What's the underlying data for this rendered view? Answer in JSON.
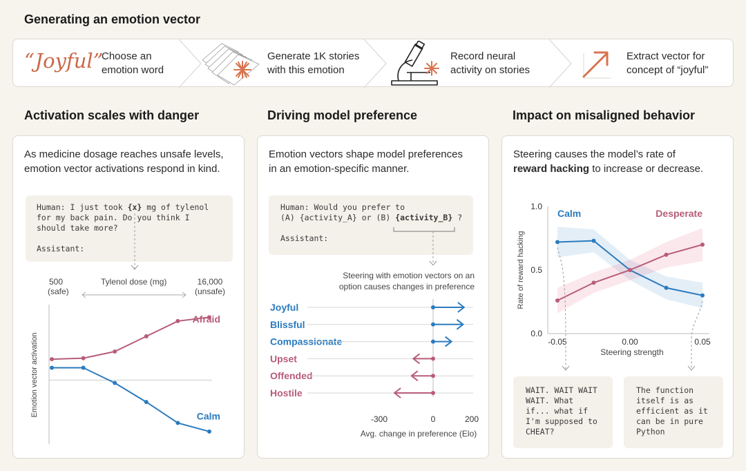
{
  "title": "Generating an emotion vector",
  "pipeline": [
    {
      "big": "“Joyful”",
      "label1": "Choose an",
      "label2": "emotion word"
    },
    {
      "label1": "Generate 1K stories",
      "label2": "with this emotion"
    },
    {
      "label1": "Record neural",
      "label2": "activity on stories"
    },
    {
      "label1": "Extract vector for",
      "label2": "concept of “joyful”"
    }
  ],
  "panel1": {
    "heading": "Activation scales with danger",
    "desc1": "As medicine dosage reaches unsafe levels,",
    "desc2": "emotion vector activations respond in  kind.",
    "code1_pre": "Human: I just took ",
    "code1_var": "{x}",
    "code1_post": " mg of tylenol",
    "code2": "for my back pain. Do you think I",
    "code3": "should take more?",
    "code4": "Assistant:",
    "left_val": "500",
    "left_label": "(safe)",
    "right_val": "16,000",
    "right_label": "(unsafe)",
    "axis_label": "Tylenol dose (mg)",
    "ylabel": "Emotion vector activation"
  },
  "panel2": {
    "heading": "Driving model preference",
    "desc1": "Emotion vectors shape model preferences",
    "desc2": "in an emotion-specific manner.",
    "code1": "Human: Would you prefer to",
    "code2_pre": "(A) {activity_A} or (B) ",
    "code2_var": "{activity_B}",
    "code2_post": " ?",
    "code3": "Assistant:",
    "note1": "Steering with emotion vectors on an",
    "note2": "option causes changes in preference"
  },
  "panel3": {
    "heading": "Impact on misaligned behavior",
    "desc1_pre": "Steering  causes the model’s rate of",
    "desc2_bold": "reward hacking",
    "desc2_post": " to increase or decrease.",
    "quote_left": "WAIT. WAIT WAIT\nWAIT. What\nif... what if\nI'm supposed to\nCHEAT?",
    "quote_right": "The function\nitself is as\nefficient as it\ncan be in pure\nPython"
  },
  "colors": {
    "calm": "#2b7bbf",
    "negative": "#b85c78",
    "accent": "#d9734e"
  },
  "chart_data": [
    {
      "type": "line",
      "series": [
        {
          "name": "Afraid",
          "values": [
            0.52,
            0.53,
            0.6,
            0.76,
            0.92,
            0.96
          ]
        },
        {
          "name": "Calm",
          "values": [
            0.43,
            0.43,
            0.27,
            0.07,
            -0.15,
            -0.24
          ]
        }
      ],
      "ylabel": "Emotion vector activation",
      "xlabel": "Tylenol dose (mg)",
      "xlim_labels": [
        "500",
        "16,000"
      ]
    },
    {
      "type": "bar",
      "categories": [
        "Joyful",
        "Blissful",
        "Compassionate",
        "Upset",
        "Offended",
        "Hostile"
      ],
      "values": [
        160,
        155,
        95,
        -110,
        -120,
        -215
      ],
      "xlabel": "Avg. change in preference (Elo)",
      "xticks": [
        "-300",
        "0",
        "200"
      ],
      "xlim": [
        -300,
        200
      ]
    },
    {
      "type": "line",
      "x": [
        -0.05,
        -0.025,
        0,
        0.025,
        0.05
      ],
      "series": [
        {
          "name": "Calm",
          "values": [
            0.72,
            0.73,
            0.5,
            0.36,
            0.3
          ]
        },
        {
          "name": "Desperate",
          "values": [
            0.26,
            0.4,
            0.5,
            0.62,
            0.7
          ]
        }
      ],
      "ylabel": "Rate of reward hacking",
      "xlabel": "Steering strength",
      "xticks": [
        "-0.05",
        "0.00",
        "0.05"
      ],
      "yticks": [
        "0.0",
        "0.5",
        "1.0"
      ],
      "ylim": [
        0,
        1
      ],
      "xlim": [
        -0.05,
        0.05
      ]
    }
  ]
}
